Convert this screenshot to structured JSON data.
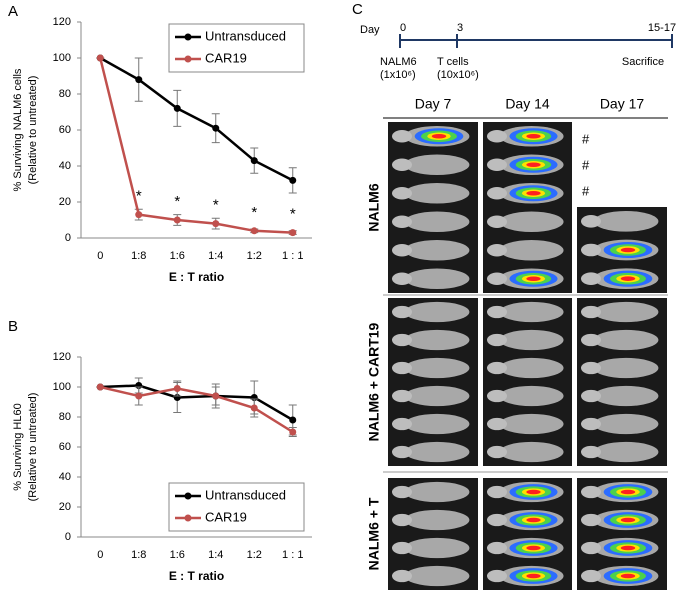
{
  "chart_data": [
    {
      "type": "line",
      "panel": "A",
      "ylabel": [
        "% Surviving NALM6 cells",
        "(Relative to untreated)"
      ],
      "xlabel": "E : T ratio",
      "categories": [
        "0",
        "1:8",
        "1:6",
        "1:4",
        "1:2",
        "1 : 1"
      ],
      "series": [
        {
          "name": "Untransduced",
          "color": "#000000",
          "values": [
            100,
            88,
            72,
            61,
            43,
            32
          ],
          "error": [
            0,
            12,
            10,
            8,
            7,
            7
          ]
        },
        {
          "name": "CAR19",
          "color": "#c0504d",
          "values": [
            100,
            13,
            10,
            8,
            4,
            3
          ],
          "error": [
            0,
            3,
            3,
            3,
            1,
            1
          ]
        }
      ],
      "annotations": [
        null,
        "*",
        "*",
        "*",
        "*",
        "*"
      ],
      "ylim": [
        0,
        120
      ],
      "yticks": [
        0,
        20,
        40,
        60,
        80,
        100,
        120
      ],
      "legend": "upper right"
    },
    {
      "type": "line",
      "panel": "B",
      "ylabel": [
        "% Surviving HL60",
        "(Relative to untreated)"
      ],
      "xlabel": "E : T ratio",
      "categories": [
        "0",
        "1:8",
        "1:6",
        "1:4",
        "1:2",
        "1 : 1"
      ],
      "series": [
        {
          "name": "Untransduced",
          "color": "#000000",
          "values": [
            100,
            101,
            93,
            94,
            93,
            78
          ],
          "error": [
            0,
            5,
            10,
            8,
            11,
            10
          ]
        },
        {
          "name": "CAR19",
          "color": "#c0504d",
          "values": [
            100,
            94,
            99,
            94,
            86,
            70
          ],
          "error": [
            0,
            6,
            5,
            6,
            6,
            3
          ]
        }
      ],
      "ylim": [
        0,
        120
      ],
      "yticks": [
        0,
        20,
        40,
        60,
        80,
        100,
        120
      ],
      "legend": "lower right"
    }
  ],
  "panel_c": {
    "label": "C",
    "timeline": {
      "day": "Day",
      "points": [
        "0",
        "3",
        "15-17"
      ],
      "events": [
        [
          "NALM6",
          "(1x10⁶)"
        ],
        [
          "T cells",
          "(10x10⁶)"
        ],
        [
          "Sacrifice"
        ]
      ]
    },
    "columns": [
      "Day 7",
      "Day 14",
      "Day 17"
    ],
    "rows": [
      "NALM6",
      "NALM6 + CART19",
      "NALM6 + T"
    ],
    "marks": [
      "#",
      "#",
      "#"
    ]
  }
}
